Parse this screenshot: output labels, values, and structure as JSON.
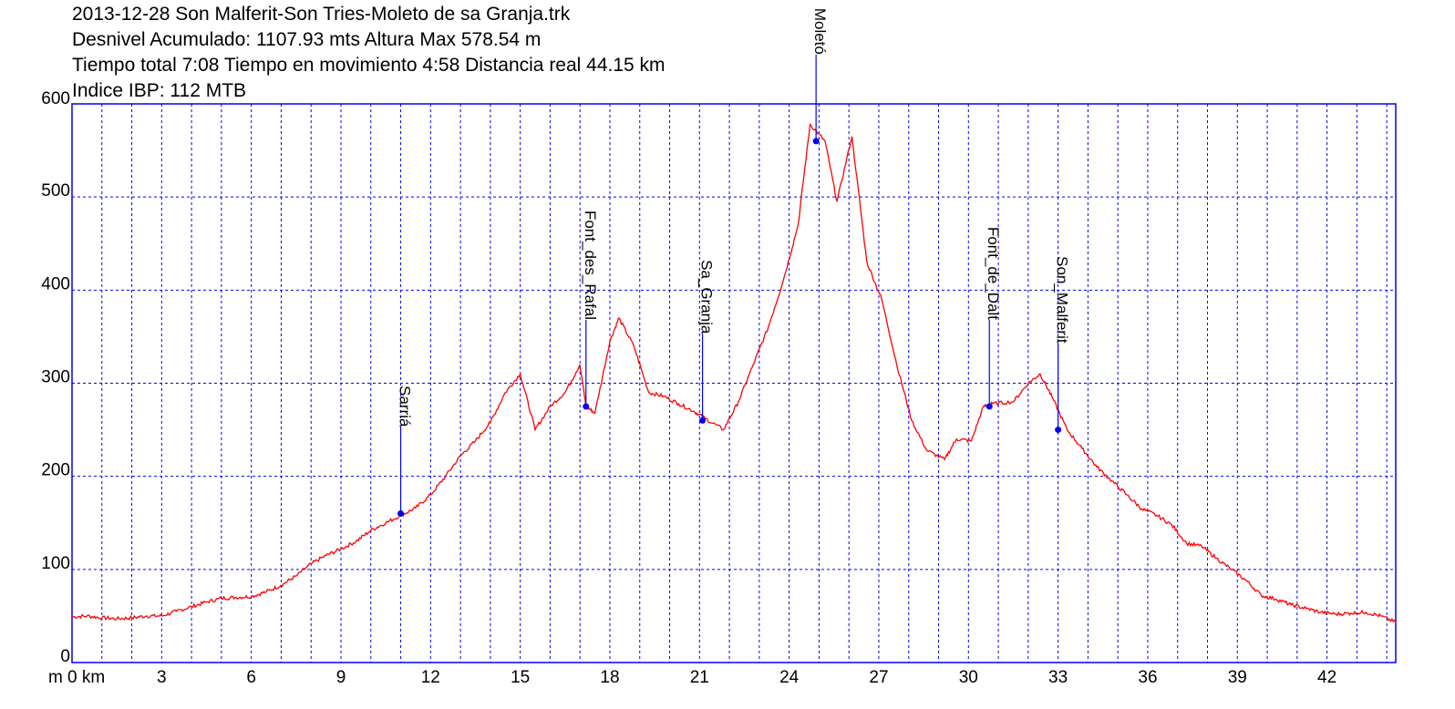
{
  "header": {
    "line1": "2013-12-28 Son Malferit-Son Tries-Moleto de sa Granja.trk",
    "line2": "Desnivel Acumulado: 1107.93 mts  Altura Max 578.54 m",
    "line3": "Tiempo total 7:08 Tiempo en movimiento 4:58 Distancia real 44.15 km",
    "line4": "Indice IBP: 112 MTB"
  },
  "colors": {
    "profile": "#ff0000",
    "grid": "#0000ff",
    "waypoint": "#0000ff"
  },
  "chart_data": {
    "type": "line",
    "title": "2013-12-28 Son Malferit-Son Tries-Moleto de sa Granja.trk",
    "y_unit_label": "m",
    "x_unit_label": "0 km",
    "xlim": [
      0,
      44.3
    ],
    "ylim": [
      0,
      600
    ],
    "x_ticks": [
      3,
      6,
      9,
      12,
      15,
      18,
      21,
      24,
      27,
      30,
      33,
      36,
      39,
      42
    ],
    "y_ticks": [
      0,
      100,
      200,
      300,
      400,
      500,
      600
    ],
    "grid": true,
    "series": [
      {
        "x": [
          0,
          0.5,
          1,
          1.5,
          2,
          2.5,
          3,
          3.5,
          4,
          4.5,
          5,
          5.5,
          6,
          6.5,
          7,
          7.5,
          8,
          8.5,
          9,
          9.5,
          10,
          10.5,
          11,
          11.5,
          12,
          12.5,
          13,
          13.5,
          14,
          14.5,
          15,
          15.5,
          16,
          16.5,
          17,
          17.2,
          17.5,
          18,
          18.3,
          18.8,
          19.3,
          19.8,
          20.3,
          20.8,
          21.2,
          21.8,
          22.3,
          22.8,
          23.3,
          23.8,
          24.3,
          24.7,
          25.2,
          25.6,
          26.1,
          26.6,
          27.1,
          27.6,
          28.1,
          28.6,
          29.2,
          29.6,
          30.1,
          30.5,
          30.8,
          31.5,
          32,
          32.4,
          32.8,
          33.3,
          33.8,
          34.3,
          34.8,
          35.3,
          35.8,
          36.3,
          36.8,
          37.3,
          37.8,
          38.3,
          38.8,
          39.3,
          39.8,
          40.3,
          40.8,
          41.3,
          41.8,
          42.3,
          42.8,
          43.3,
          43.8,
          44.3
        ],
        "y": [
          49,
          50,
          48,
          47,
          48,
          50,
          50,
          55,
          60,
          65,
          69,
          70,
          71,
          76,
          83,
          93,
          106,
          115,
          122,
          130,
          142,
          150,
          158,
          166,
          180,
          200,
          222,
          238,
          258,
          290,
          310,
          250,
          275,
          290,
          320,
          275,
          268,
          345,
          370,
          340,
          290,
          286,
          278,
          270,
          262,
          250,
          280,
          320,
          360,
          410,
          470,
          578,
          560,
          495,
          565,
          430,
          390,
          320,
          260,
          228,
          218,
          240,
          238,
          275,
          278,
          280,
          300,
          310,
          285,
          250,
          230,
          210,
          195,
          180,
          165,
          158,
          148,
          128,
          125,
          112,
          100,
          88,
          72,
          68,
          62,
          58,
          54,
          52,
          53,
          54,
          50,
          43
        ]
      }
    ],
    "waypoints": [
      {
        "name": "Sarriá",
        "km": 11.0,
        "alt": 160
      },
      {
        "name": "Font_des_Rafal",
        "km": 17.2,
        "alt": 275
      },
      {
        "name": "Sa_Granja",
        "km": 21.1,
        "alt": 260
      },
      {
        "name": "Moletó",
        "km": 24.9,
        "alt": 560
      },
      {
        "name": "Font_de_Dalt",
        "km": 30.7,
        "alt": 275
      },
      {
        "name": "Son_Malferit",
        "km": 33.0,
        "alt": 250
      }
    ]
  }
}
